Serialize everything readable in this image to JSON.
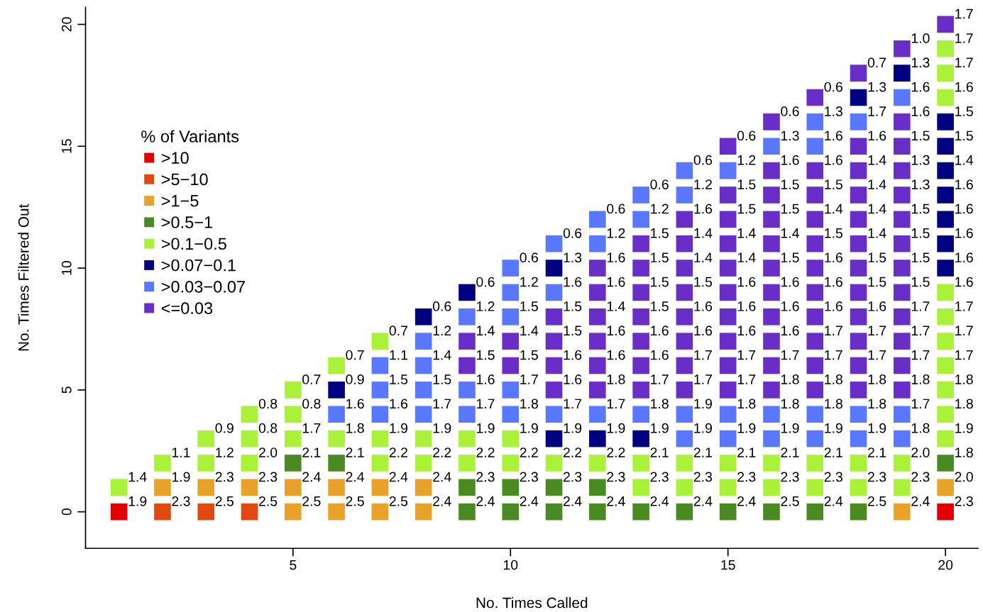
{
  "chart_data": {
    "type": "scatter",
    "xlabel": "No. Times Called",
    "ylabel": "No. Times Filtered Out",
    "legend_title": "% of Variants",
    "legend": "left",
    "marker": "square",
    "grid": false,
    "xlim": [
      0.23,
      20.75
    ],
    "ylim": [
      -1.5,
      20.7
    ],
    "xticks": [
      5,
      10,
      15,
      20
    ],
    "yticks": [
      0,
      5,
      10,
      15,
      20
    ],
    "series": [
      {
        "name": ">10",
        "color": "#e00000",
        "x": [
          1,
          20
        ],
        "values": [
          0,
          0
        ]
      },
      {
        "name": ">5−10",
        "color": "#e04a10",
        "x": [
          2,
          3,
          4
        ],
        "values": [
          0,
          0,
          0
        ]
      },
      {
        "name": ">1−5",
        "color": "#e8a22a",
        "x": [
          2,
          3,
          4,
          5,
          5,
          6,
          6,
          7,
          7,
          8,
          8,
          19,
          20
        ],
        "values": [
          1,
          1,
          1,
          0,
          1,
          0,
          1,
          0,
          1,
          0,
          1,
          0,
          1
        ]
      },
      {
        "name": ">0.5−1",
        "color": "#4a8a22",
        "x": [
          5,
          6,
          9,
          9,
          10,
          10,
          11,
          11,
          12,
          12,
          13,
          14,
          15,
          16,
          17,
          18,
          20
        ],
        "values": [
          2,
          2,
          0,
          1,
          0,
          1,
          0,
          1,
          0,
          1,
          0,
          0,
          0,
          0,
          0,
          0,
          2
        ]
      },
      {
        "name": ">0.1−0.5",
        "color": "#aaf23a",
        "x": [
          1,
          2,
          3,
          3,
          4,
          4,
          4,
          5,
          5,
          5,
          6,
          6,
          7,
          7,
          7,
          8,
          8,
          9,
          9,
          10,
          10,
          11,
          12,
          13,
          13,
          14,
          14,
          15,
          15,
          16,
          16,
          17,
          17,
          18,
          18,
          19,
          19,
          20,
          20,
          20,
          20,
          20,
          20,
          20,
          20,
          20,
          20
        ],
        "values": [
          1,
          2,
          2,
          3,
          2,
          3,
          4,
          3,
          4,
          5,
          3,
          6,
          2,
          3,
          7,
          2,
          3,
          2,
          3,
          2,
          3,
          2,
          2,
          1,
          2,
          1,
          2,
          1,
          2,
          1,
          2,
          1,
          2,
          1,
          2,
          1,
          2,
          3,
          4,
          5,
          6,
          7,
          8,
          9,
          17,
          18,
          19
        ]
      },
      {
        "name": ">0.07−0.1",
        "color": "#000080",
        "x": [
          6,
          8,
          9,
          11,
          11,
          12,
          13,
          18,
          19,
          20,
          20,
          20,
          20,
          20,
          20,
          20
        ],
        "values": [
          5,
          8,
          9,
          3,
          10,
          3,
          3,
          17,
          18,
          10,
          11,
          12,
          13,
          14,
          15,
          16
        ]
      },
      {
        "name": ">0.03−0.07",
        "color": "#5a78ff",
        "x": [
          6,
          7,
          7,
          7,
          8,
          8,
          8,
          8,
          9,
          9,
          9,
          10,
          10,
          10,
          10,
          10,
          11,
          11,
          11,
          12,
          12,
          12,
          13,
          13,
          13,
          14,
          14,
          14,
          14,
          15,
          15,
          15,
          16,
          16,
          16,
          17,
          17,
          17,
          17,
          18,
          18,
          18,
          19,
          19,
          19
        ],
        "values": [
          4,
          4,
          5,
          6,
          4,
          5,
          6,
          7,
          4,
          5,
          8,
          4,
          5,
          8,
          9,
          10,
          4,
          9,
          11,
          4,
          11,
          12,
          4,
          12,
          13,
          3,
          4,
          13,
          14,
          3,
          4,
          14,
          3,
          4,
          15,
          3,
          4,
          15,
          16,
          3,
          4,
          16,
          3,
          4,
          17
        ]
      },
      {
        "name": "<=0.03",
        "color": "#6a2ec8",
        "x": [
          9,
          9,
          10,
          10,
          11,
          11,
          11,
          11,
          12,
          12,
          12,
          12,
          12,
          12,
          13,
          13,
          13,
          13,
          13,
          13,
          13,
          14,
          14,
          14,
          14,
          14,
          14,
          14,
          14,
          15,
          15,
          15,
          15,
          15,
          15,
          15,
          15,
          15,
          15,
          16,
          16,
          16,
          16,
          16,
          16,
          16,
          16,
          16,
          16,
          16,
          17,
          17,
          17,
          17,
          17,
          17,
          17,
          17,
          17,
          17,
          17,
          18,
          18,
          18,
          18,
          18,
          18,
          18,
          18,
          18,
          18,
          18,
          18,
          19,
          19,
          19,
          19,
          19,
          19,
          19,
          19,
          19,
          19,
          19,
          19,
          19,
          20
        ],
        "values": [
          6,
          7,
          6,
          7,
          5,
          6,
          7,
          8,
          5,
          6,
          7,
          8,
          9,
          10,
          5,
          6,
          7,
          8,
          9,
          10,
          11,
          5,
          6,
          7,
          8,
          9,
          10,
          11,
          12,
          5,
          6,
          7,
          8,
          9,
          10,
          11,
          12,
          13,
          15,
          5,
          6,
          7,
          8,
          9,
          10,
          11,
          12,
          13,
          14,
          16,
          5,
          6,
          7,
          8,
          9,
          10,
          11,
          12,
          13,
          14,
          17,
          5,
          6,
          7,
          8,
          9,
          10,
          11,
          12,
          13,
          14,
          15,
          18,
          5,
          6,
          7,
          8,
          9,
          10,
          11,
          12,
          13,
          14,
          15,
          16,
          19,
          20
        ]
      }
    ],
    "annotations": [
      {
        "text": "1.9",
        "x": 1,
        "y": 0
      },
      {
        "text": "2.3",
        "x": 20,
        "y": 0
      },
      {
        "text": "2.3",
        "x": 2,
        "y": 0
      },
      {
        "text": "2.5",
        "x": 3,
        "y": 0
      },
      {
        "text": "2.5",
        "x": 4,
        "y": 0
      },
      {
        "text": "1.9",
        "x": 2,
        "y": 1
      },
      {
        "text": "2.3",
        "x": 3,
        "y": 1
      },
      {
        "text": "2.3",
        "x": 4,
        "y": 1
      },
      {
        "text": "2.5",
        "x": 5,
        "y": 0
      },
      {
        "text": "2.4",
        "x": 5,
        "y": 1
      },
      {
        "text": "2.5",
        "x": 6,
        "y": 0
      },
      {
        "text": "2.4",
        "x": 6,
        "y": 1
      },
      {
        "text": "2.5",
        "x": 7,
        "y": 0
      },
      {
        "text": "2.4",
        "x": 7,
        "y": 1
      },
      {
        "text": "2.4",
        "x": 8,
        "y": 0
      },
      {
        "text": "2.4",
        "x": 8,
        "y": 1
      },
      {
        "text": "2.4",
        "x": 19,
        "y": 0
      },
      {
        "text": "2.0",
        "x": 20,
        "y": 1
      },
      {
        "text": "2.1",
        "x": 5,
        "y": 2
      },
      {
        "text": "2.1",
        "x": 6,
        "y": 2
      },
      {
        "text": "2.4",
        "x": 9,
        "y": 0
      },
      {
        "text": "2.3",
        "x": 9,
        "y": 1
      },
      {
        "text": "2.4",
        "x": 10,
        "y": 0
      },
      {
        "text": "2.3",
        "x": 10,
        "y": 1
      },
      {
        "text": "2.4",
        "x": 11,
        "y": 0
      },
      {
        "text": "2.3",
        "x": 11,
        "y": 1
      },
      {
        "text": "2.4",
        "x": 12,
        "y": 0
      },
      {
        "text": "2.3",
        "x": 12,
        "y": 1
      },
      {
        "text": "2.4",
        "x": 13,
        "y": 0
      },
      {
        "text": "2.4",
        "x": 14,
        "y": 0
      },
      {
        "text": "2.4",
        "x": 15,
        "y": 0
      },
      {
        "text": "2.5",
        "x": 16,
        "y": 0
      },
      {
        "text": "2.4",
        "x": 17,
        "y": 0
      },
      {
        "text": "2.5",
        "x": 18,
        "y": 0
      },
      {
        "text": "1.8",
        "x": 20,
        "y": 2
      },
      {
        "text": "1.4",
        "x": 1,
        "y": 1
      },
      {
        "text": "1.1",
        "x": 2,
        "y": 2
      },
      {
        "text": "1.2",
        "x": 3,
        "y": 2
      },
      {
        "text": "0.9",
        "x": 3,
        "y": 3
      },
      {
        "text": "2.0",
        "x": 4,
        "y": 2
      },
      {
        "text": "0.8",
        "x": 4,
        "y": 3
      },
      {
        "text": "0.8",
        "x": 4,
        "y": 4
      },
      {
        "text": "1.7",
        "x": 5,
        "y": 3
      },
      {
        "text": "0.8",
        "x": 5,
        "y": 4
      },
      {
        "text": "0.7",
        "x": 5,
        "y": 5
      },
      {
        "text": "1.8",
        "x": 6,
        "y": 3
      },
      {
        "text": "0.7",
        "x": 6,
        "y": 6
      },
      {
        "text": "2.2",
        "x": 7,
        "y": 2
      },
      {
        "text": "1.9",
        "x": 7,
        "y": 3
      },
      {
        "text": "0.7",
        "x": 7,
        "y": 7
      },
      {
        "text": "2.2",
        "x": 8,
        "y": 2
      },
      {
        "text": "1.9",
        "x": 8,
        "y": 3
      },
      {
        "text": "2.2",
        "x": 9,
        "y": 2
      },
      {
        "text": "1.9",
        "x": 9,
        "y": 3
      },
      {
        "text": "2.2",
        "x": 10,
        "y": 2
      },
      {
        "text": "1.9",
        "x": 10,
        "y": 3
      },
      {
        "text": "2.2",
        "x": 11,
        "y": 2
      },
      {
        "text": "2.2",
        "x": 12,
        "y": 2
      },
      {
        "text": "2.3",
        "x": 13,
        "y": 1
      },
      {
        "text": "2.1",
        "x": 13,
        "y": 2
      },
      {
        "text": "2.3",
        "x": 14,
        "y": 1
      },
      {
        "text": "2.1",
        "x": 14,
        "y": 2
      },
      {
        "text": "2.3",
        "x": 15,
        "y": 1
      },
      {
        "text": "2.1",
        "x": 15,
        "y": 2
      },
      {
        "text": "2.3",
        "x": 16,
        "y": 1
      },
      {
        "text": "2.1",
        "x": 16,
        "y": 2
      },
      {
        "text": "2.3",
        "x": 17,
        "y": 1
      },
      {
        "text": "2.1",
        "x": 17,
        "y": 2
      },
      {
        "text": "2.3",
        "x": 18,
        "y": 1
      },
      {
        "text": "2.1",
        "x": 18,
        "y": 2
      },
      {
        "text": "2.3",
        "x": 19,
        "y": 1
      },
      {
        "text": "2.0",
        "x": 19,
        "y": 2
      },
      {
        "text": "1.9",
        "x": 20,
        "y": 3
      },
      {
        "text": "1.8",
        "x": 20,
        "y": 4
      },
      {
        "text": "1.8",
        "x": 20,
        "y": 5
      },
      {
        "text": "1.7",
        "x": 20,
        "y": 6
      },
      {
        "text": "1.7",
        "x": 20,
        "y": 7
      },
      {
        "text": "1.7",
        "x": 20,
        "y": 8
      },
      {
        "text": "1.6",
        "x": 20,
        "y": 9
      },
      {
        "text": "1.6",
        "x": 20,
        "y": 17
      },
      {
        "text": "1.7",
        "x": 20,
        "y": 18
      },
      {
        "text": "1.7",
        "x": 20,
        "y": 19
      },
      {
        "text": "0.9",
        "x": 6,
        "y": 5
      },
      {
        "text": "0.6",
        "x": 8,
        "y": 8
      },
      {
        "text": "0.6",
        "x": 9,
        "y": 9
      },
      {
        "text": "1.9",
        "x": 11,
        "y": 3
      },
      {
        "text": "1.3",
        "x": 11,
        "y": 10
      },
      {
        "text": "1.9",
        "x": 12,
        "y": 3
      },
      {
        "text": "1.9",
        "x": 13,
        "y": 3
      },
      {
        "text": "1.3",
        "x": 18,
        "y": 17
      },
      {
        "text": "1.3",
        "x": 19,
        "y": 18
      },
      {
        "text": "1.6",
        "x": 20,
        "y": 10
      },
      {
        "text": "1.6",
        "x": 20,
        "y": 11
      },
      {
        "text": "1.6",
        "x": 20,
        "y": 12
      },
      {
        "text": "1.6",
        "x": 20,
        "y": 13
      },
      {
        "text": "1.4",
        "x": 20,
        "y": 14
      },
      {
        "text": "1.5",
        "x": 20,
        "y": 15
      },
      {
        "text": "1.5",
        "x": 20,
        "y": 16
      },
      {
        "text": "1.6",
        "x": 6,
        "y": 4
      },
      {
        "text": "1.6",
        "x": 7,
        "y": 4
      },
      {
        "text": "1.5",
        "x": 7,
        "y": 5
      },
      {
        "text": "1.1",
        "x": 7,
        "y": 6
      },
      {
        "text": "1.7",
        "x": 8,
        "y": 4
      },
      {
        "text": "1.5",
        "x": 8,
        "y": 5
      },
      {
        "text": "1.4",
        "x": 8,
        "y": 6
      },
      {
        "text": "1.2",
        "x": 8,
        "y": 7
      },
      {
        "text": "1.7",
        "x": 9,
        "y": 4
      },
      {
        "text": "1.6",
        "x": 9,
        "y": 5
      },
      {
        "text": "1.2",
        "x": 9,
        "y": 8
      },
      {
        "text": "1.8",
        "x": 10,
        "y": 4
      },
      {
        "text": "1.7",
        "x": 10,
        "y": 5
      },
      {
        "text": "1.5",
        "x": 10,
        "y": 8
      },
      {
        "text": "1.2",
        "x": 10,
        "y": 9
      },
      {
        "text": "0.6",
        "x": 10,
        "y": 10
      },
      {
        "text": "1.7",
        "x": 11,
        "y": 4
      },
      {
        "text": "1.6",
        "x": 11,
        "y": 9
      },
      {
        "text": "0.6",
        "x": 11,
        "y": 11
      },
      {
        "text": "1.7",
        "x": 12,
        "y": 4
      },
      {
        "text": "1.2",
        "x": 12,
        "y": 11
      },
      {
        "text": "0.6",
        "x": 12,
        "y": 12
      },
      {
        "text": "1.8",
        "x": 13,
        "y": 4
      },
      {
        "text": "1.2",
        "x": 13,
        "y": 12
      },
      {
        "text": "0.6",
        "x": 13,
        "y": 13
      },
      {
        "text": "1.9",
        "x": 14,
        "y": 3
      },
      {
        "text": "1.9",
        "x": 14,
        "y": 4
      },
      {
        "text": "1.2",
        "x": 14,
        "y": 13
      },
      {
        "text": "0.6",
        "x": 14,
        "y": 14
      },
      {
        "text": "1.9",
        "x": 15,
        "y": 3
      },
      {
        "text": "1.8",
        "x": 15,
        "y": 4
      },
      {
        "text": "1.2",
        "x": 15,
        "y": 14
      },
      {
        "text": "1.9",
        "x": 16,
        "y": 3
      },
      {
        "text": "1.8",
        "x": 16,
        "y": 4
      },
      {
        "text": "1.3",
        "x": 16,
        "y": 15
      },
      {
        "text": "1.9",
        "x": 17,
        "y": 3
      },
      {
        "text": "1.8",
        "x": 17,
        "y": 4
      },
      {
        "text": "1.6",
        "x": 17,
        "y": 15
      },
      {
        "text": "1.3",
        "x": 17,
        "y": 16
      },
      {
        "text": "1.9",
        "x": 18,
        "y": 3
      },
      {
        "text": "1.8",
        "x": 18,
        "y": 4
      },
      {
        "text": "1.7",
        "x": 18,
        "y": 16
      },
      {
        "text": "1.8",
        "x": 19,
        "y": 3
      },
      {
        "text": "1.7",
        "x": 19,
        "y": 4
      },
      {
        "text": "1.6",
        "x": 19,
        "y": 17
      },
      {
        "text": "1.5",
        "x": 9,
        "y": 6
      },
      {
        "text": "1.4",
        "x": 9,
        "y": 7
      },
      {
        "text": "1.5",
        "x": 10,
        "y": 6
      },
      {
        "text": "1.4",
        "x": 10,
        "y": 7
      },
      {
        "text": "1.6",
        "x": 11,
        "y": 5
      },
      {
        "text": "1.6",
        "x": 11,
        "y": 6
      },
      {
        "text": "1.5",
        "x": 11,
        "y": 7
      },
      {
        "text": "1.5",
        "x": 11,
        "y": 8
      },
      {
        "text": "1.8",
        "x": 12,
        "y": 5
      },
      {
        "text": "1.6",
        "x": 12,
        "y": 6
      },
      {
        "text": "1.6",
        "x": 12,
        "y": 7
      },
      {
        "text": "1.4",
        "x": 12,
        "y": 8
      },
      {
        "text": "1.6",
        "x": 12,
        "y": 9
      },
      {
        "text": "1.6",
        "x": 12,
        "y": 10
      },
      {
        "text": "1.7",
        "x": 13,
        "y": 5
      },
      {
        "text": "1.6",
        "x": 13,
        "y": 6
      },
      {
        "text": "1.6",
        "x": 13,
        "y": 7
      },
      {
        "text": "1.5",
        "x": 13,
        "y": 8
      },
      {
        "text": "1.5",
        "x": 13,
        "y": 9
      },
      {
        "text": "1.5",
        "x": 13,
        "y": 10
      },
      {
        "text": "1.5",
        "x": 13,
        "y": 11
      },
      {
        "text": "1.7",
        "x": 14,
        "y": 5
      },
      {
        "text": "1.7",
        "x": 14,
        "y": 6
      },
      {
        "text": "1.6",
        "x": 14,
        "y": 7
      },
      {
        "text": "1.6",
        "x": 14,
        "y": 8
      },
      {
        "text": "1.5",
        "x": 14,
        "y": 9
      },
      {
        "text": "1.4",
        "x": 14,
        "y": 10
      },
      {
        "text": "1.4",
        "x": 14,
        "y": 11
      },
      {
        "text": "1.6",
        "x": 14,
        "y": 12
      },
      {
        "text": "1.7",
        "x": 15,
        "y": 5
      },
      {
        "text": "1.7",
        "x": 15,
        "y": 6
      },
      {
        "text": "1.6",
        "x": 15,
        "y": 7
      },
      {
        "text": "1.6",
        "x": 15,
        "y": 8
      },
      {
        "text": "1.6",
        "x": 15,
        "y": 9
      },
      {
        "text": "1.4",
        "x": 15,
        "y": 10
      },
      {
        "text": "1.4",
        "x": 15,
        "y": 11
      },
      {
        "text": "1.5",
        "x": 15,
        "y": 12
      },
      {
        "text": "1.5",
        "x": 15,
        "y": 13
      },
      {
        "text": "0.6",
        "x": 15,
        "y": 15
      },
      {
        "text": "1.8",
        "x": 16,
        "y": 5
      },
      {
        "text": "1.7",
        "x": 16,
        "y": 6
      },
      {
        "text": "1.6",
        "x": 16,
        "y": 7
      },
      {
        "text": "1.6",
        "x": 16,
        "y": 8
      },
      {
        "text": "1.6",
        "x": 16,
        "y": 9
      },
      {
        "text": "1.5",
        "x": 16,
        "y": 10
      },
      {
        "text": "1.4",
        "x": 16,
        "y": 11
      },
      {
        "text": "1.5",
        "x": 16,
        "y": 12
      },
      {
        "text": "1.5",
        "x": 16,
        "y": 13
      },
      {
        "text": "1.6",
        "x": 16,
        "y": 14
      },
      {
        "text": "0.6",
        "x": 16,
        "y": 16
      },
      {
        "text": "1.8",
        "x": 17,
        "y": 5
      },
      {
        "text": "1.7",
        "x": 17,
        "y": 6
      },
      {
        "text": "1.7",
        "x": 17,
        "y": 7
      },
      {
        "text": "1.6",
        "x": 17,
        "y": 8
      },
      {
        "text": "1.6",
        "x": 17,
        "y": 9
      },
      {
        "text": "1.6",
        "x": 17,
        "y": 10
      },
      {
        "text": "1.5",
        "x": 17,
        "y": 11
      },
      {
        "text": "1.4",
        "x": 17,
        "y": 12
      },
      {
        "text": "1.5",
        "x": 17,
        "y": 13
      },
      {
        "text": "1.6",
        "x": 17,
        "y": 14
      },
      {
        "text": "0.6",
        "x": 17,
        "y": 17
      },
      {
        "text": "1.8",
        "x": 18,
        "y": 5
      },
      {
        "text": "1.7",
        "x": 18,
        "y": 6
      },
      {
        "text": "1.7",
        "x": 18,
        "y": 7
      },
      {
        "text": "1.6",
        "x": 18,
        "y": 8
      },
      {
        "text": "1.5",
        "x": 18,
        "y": 9
      },
      {
        "text": "1.5",
        "x": 18,
        "y": 10
      },
      {
        "text": "1.4",
        "x": 18,
        "y": 11
      },
      {
        "text": "1.4",
        "x": 18,
        "y": 12
      },
      {
        "text": "1.4",
        "x": 18,
        "y": 13
      },
      {
        "text": "1.4",
        "x": 18,
        "y": 14
      },
      {
        "text": "1.6",
        "x": 18,
        "y": 15
      },
      {
        "text": "0.7",
        "x": 18,
        "y": 18
      },
      {
        "text": "1.8",
        "x": 19,
        "y": 5
      },
      {
        "text": "1.7",
        "x": 19,
        "y": 6
      },
      {
        "text": "1.7",
        "x": 19,
        "y": 7
      },
      {
        "text": "1.7",
        "x": 19,
        "y": 8
      },
      {
        "text": "1.5",
        "x": 19,
        "y": 9
      },
      {
        "text": "1.5",
        "x": 19,
        "y": 10
      },
      {
        "text": "1.5",
        "x": 19,
        "y": 11
      },
      {
        "text": "1.5",
        "x": 19,
        "y": 12
      },
      {
        "text": "1.3",
        "x": 19,
        "y": 13
      },
      {
        "text": "1.3",
        "x": 19,
        "y": 14
      },
      {
        "text": "1.5",
        "x": 19,
        "y": 15
      },
      {
        "text": "1.6",
        "x": 19,
        "y": 16
      },
      {
        "text": "1.0",
        "x": 19,
        "y": 19
      },
      {
        "text": "1.7",
        "x": 20,
        "y": 20
      }
    ]
  }
}
